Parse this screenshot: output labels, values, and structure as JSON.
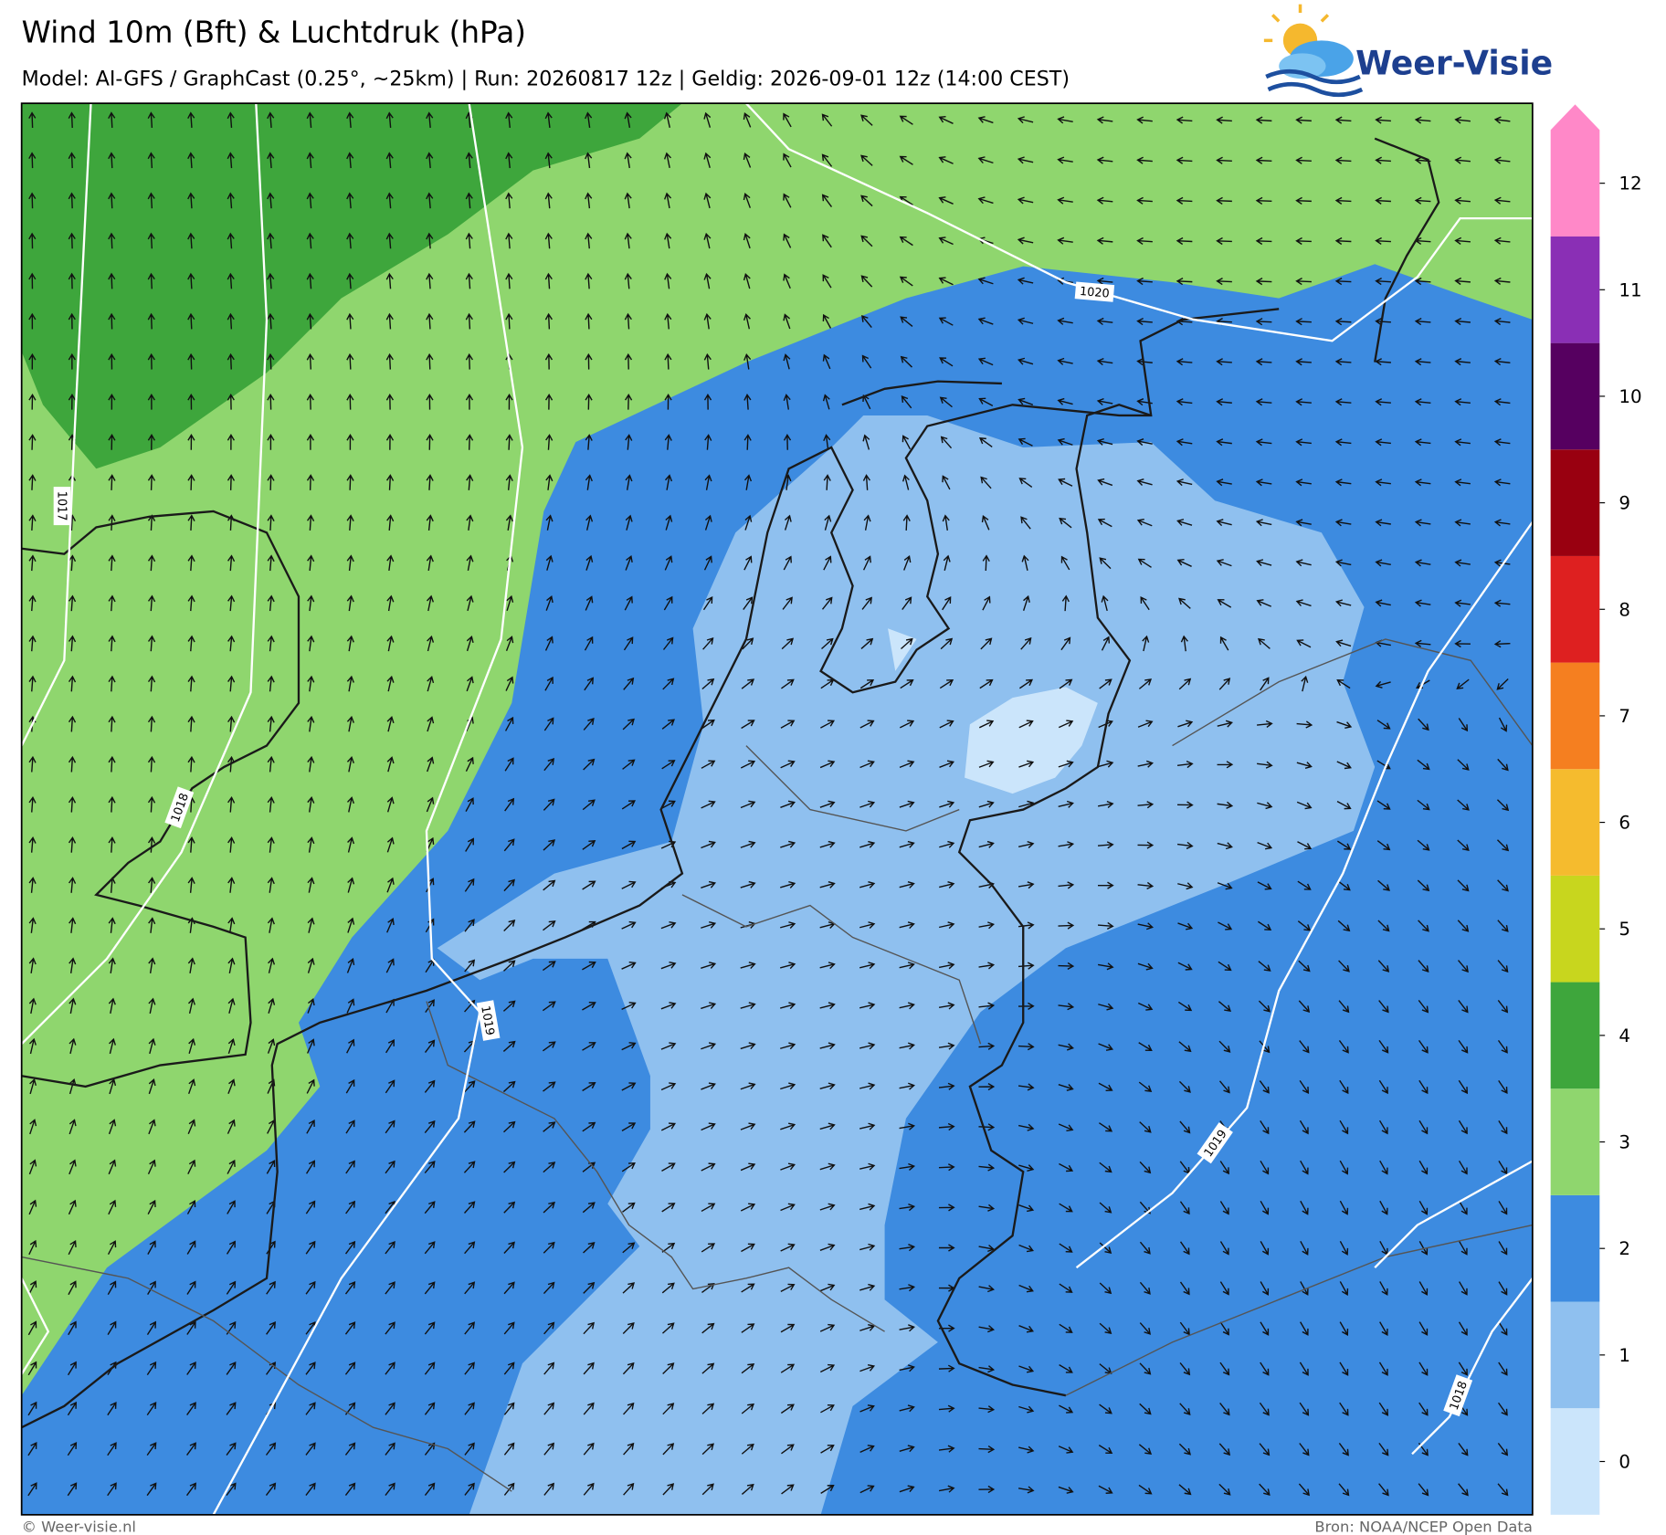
{
  "header": {
    "title": "Wind 10m (Bft) & Luchtdruk (hPa)",
    "subtitle": "Model: AI-GFS / GraphCast (0.25°, ~25km)  |  Run: 20260817 12z  |  Geldig: 2026-09-01 12z (14:00 CEST)"
  },
  "logo": {
    "text": "Weer-Visie"
  },
  "map": {
    "isobars": [
      {
        "value": 1020
      },
      {
        "value": 1017
      },
      {
        "value": 1018
      },
      {
        "value": 1019
      },
      {
        "value": 1019
      },
      {
        "value": 1018
      }
    ]
  },
  "legend": {
    "levels": [
      {
        "value": 0,
        "color": "#cbe5fb"
      },
      {
        "value": 1,
        "color": "#8fc0ef"
      },
      {
        "value": 2,
        "color": "#3d8be0"
      },
      {
        "value": 3,
        "color": "#8fd66e"
      },
      {
        "value": 4,
        "color": "#3ea63c"
      },
      {
        "value": 5,
        "color": "#c8d61e"
      },
      {
        "value": 6,
        "color": "#f5bb2e"
      },
      {
        "value": 7,
        "color": "#f57f20"
      },
      {
        "value": 8,
        "color": "#de2020"
      },
      {
        "value": 9,
        "color": "#990010"
      },
      {
        "value": 10,
        "color": "#560060"
      },
      {
        "value": 11,
        "color": "#8a2fb5"
      },
      {
        "value": 12,
        "color": "#ff88c8"
      }
    ]
  },
  "footer": {
    "left": "© Weer-visie.nl",
    "right": "Bron: NOAA/NCEP Open Data"
  }
}
